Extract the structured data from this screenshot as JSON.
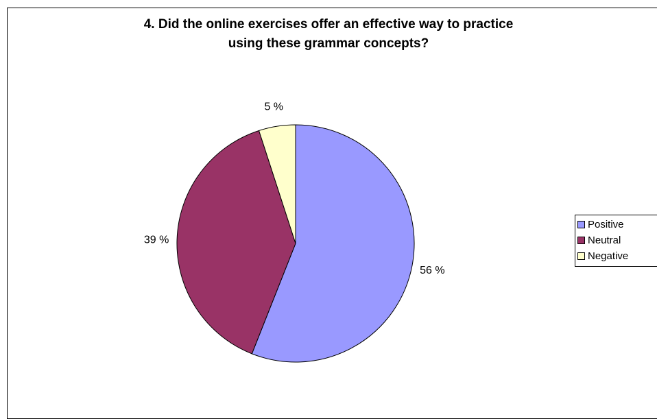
{
  "chart_data": {
    "type": "pie",
    "title": [
      "4. Did the online exercises offer an effective way to practice",
      "using these grammar concepts?"
    ],
    "series": [
      {
        "name": "Positive",
        "value": 56,
        "label": "56 %",
        "color": "#9999ff"
      },
      {
        "name": "Neutral",
        "value": 39,
        "label": "39 %",
        "color": "#993366"
      },
      {
        "name": "Negative",
        "value": 5,
        "label": "5 %",
        "color": "#ffffcc"
      }
    ],
    "legend": {
      "placement": "right",
      "entries": [
        "Positive",
        "Neutral",
        "Negative"
      ]
    },
    "start_angle": "12 o'clock",
    "direction": "clockwise"
  }
}
